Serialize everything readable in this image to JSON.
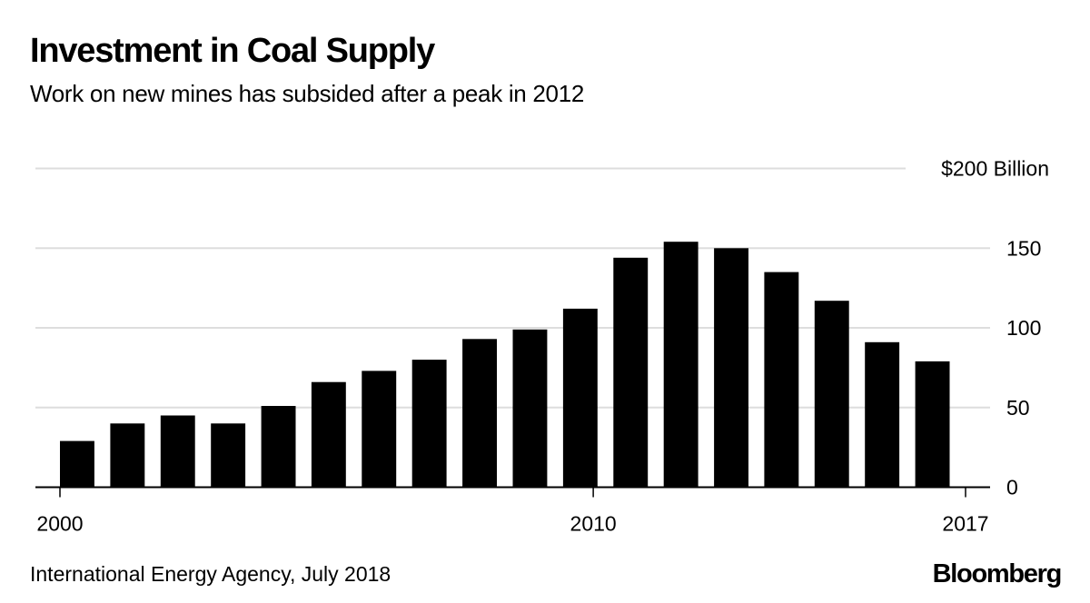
{
  "header": {
    "title": "Investment in Coal Supply",
    "subtitle": "Work on new mines has subsided after a peak in 2012"
  },
  "footer": {
    "source": "International Energy Agency, July 2018",
    "brand": "Bloomberg"
  },
  "colors": {
    "bar": "#000000",
    "gridline": "#dddddd",
    "axis": "#000000",
    "background": "#ffffff"
  },
  "chart_data": {
    "type": "bar",
    "title": "Investment in Coal Supply",
    "subtitle": "Work on new mines has subsided after a peak in 2012",
    "xlabel": "",
    "ylabel": "$ Billion",
    "categories": [
      "2000",
      "2001",
      "2002",
      "2003",
      "2004",
      "2005",
      "2006",
      "2007",
      "2008",
      "2009",
      "2010",
      "2011",
      "2012",
      "2013",
      "2014",
      "2015",
      "2016",
      "2017"
    ],
    "values": [
      29,
      40,
      45,
      40,
      51,
      66,
      73,
      80,
      93,
      99,
      112,
      144,
      154,
      150,
      135,
      117,
      91,
      79
    ],
    "ylim": [
      0,
      200
    ],
    "y_ticks": [
      0,
      50,
      100,
      150,
      200
    ],
    "y_tick_labels": [
      "0",
      "50",
      "100",
      "150",
      "$200 Billion"
    ],
    "y_axis_side": "right",
    "x_ticks": [
      "2000",
      "2010",
      "2017"
    ],
    "grid": true,
    "legend": "none",
    "source": "International Energy Agency, July 2018"
  }
}
